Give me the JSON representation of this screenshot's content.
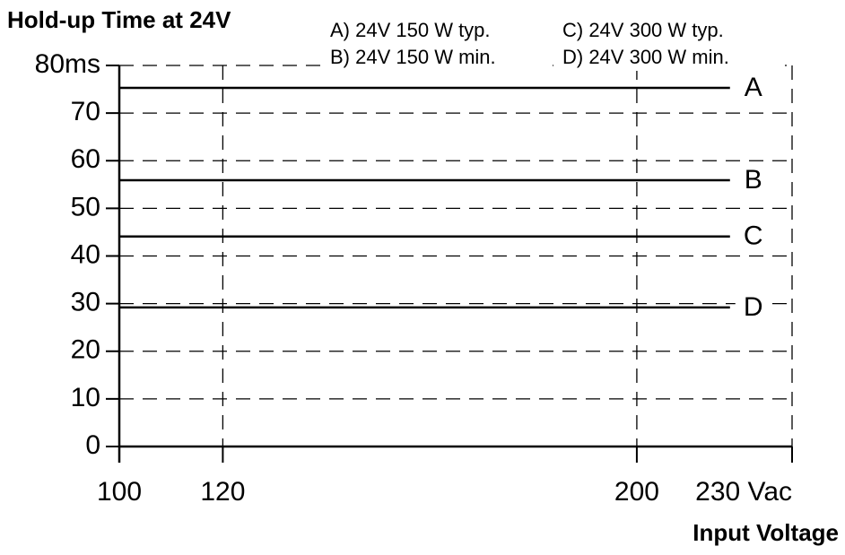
{
  "chart_data": {
    "type": "line",
    "title": "Hold-up Time at 24V",
    "xlabel": "Input Voltage",
    "xlim": [
      100,
      230
    ],
    "ylim": [
      0,
      80
    ],
    "xticks": [
      100,
      120,
      200,
      {
        "value": 230,
        "label": "230 Vac"
      }
    ],
    "yticks": [
      0,
      10,
      20,
      30,
      40,
      50,
      60,
      70,
      {
        "value": 80,
        "label": "80ms"
      }
    ],
    "grid": true,
    "x": [
      100,
      218
    ],
    "series": [
      {
        "name": "A) 24V 150 W typ.",
        "label": "A",
        "color": "#000000",
        "values": [
          75.3,
          75.3
        ]
      },
      {
        "name": "B) 24V 150 W min.",
        "label": "B",
        "color": "#000000",
        "values": [
          55.9,
          55.9
        ]
      },
      {
        "name": "C) 24V 300 W typ.",
        "label": "C",
        "color": "#000000",
        "values": [
          44.1,
          44.1
        ]
      },
      {
        "name": "D) 24V 300 W min.",
        "label": "D",
        "color": "#000000",
        "values": [
          29.2,
          29.2
        ]
      }
    ]
  }
}
